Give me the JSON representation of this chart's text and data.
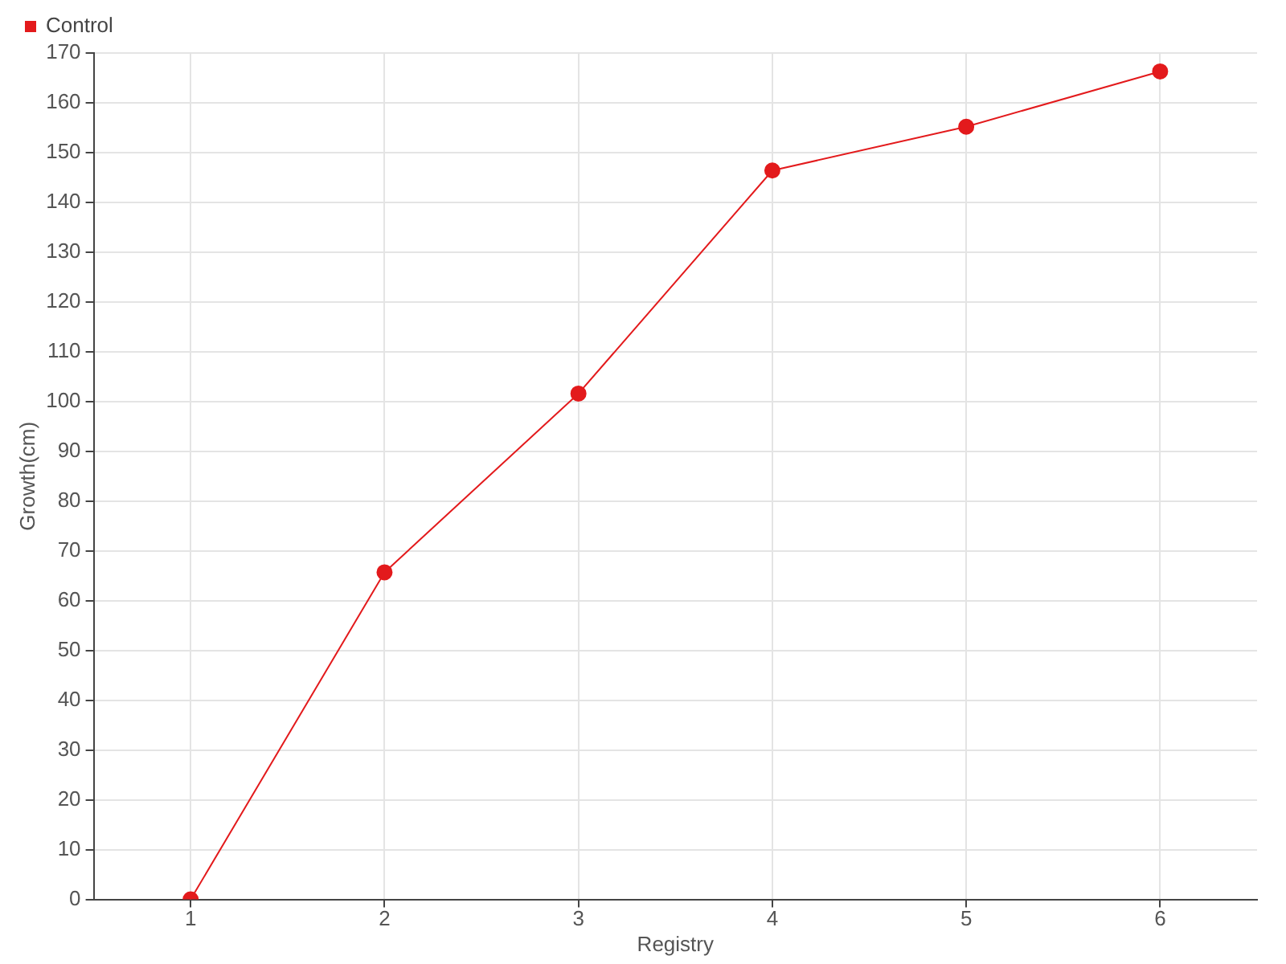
{
  "chart_data": {
    "type": "line",
    "xlabel": "Registry",
    "ylabel": "Growth(cm)",
    "categories": [
      "1",
      "2",
      "3",
      "4",
      "5",
      "6"
    ],
    "series": [
      {
        "name": "Control",
        "color": "#e31a1c",
        "values": [
          0,
          65.7,
          101.6,
          146.4,
          155.2,
          166.3
        ]
      }
    ],
    "ylim": [
      0,
      170
    ],
    "yticks": [
      0,
      10,
      20,
      30,
      40,
      50,
      60,
      70,
      80,
      90,
      100,
      110,
      120,
      130,
      140,
      150,
      160,
      170
    ],
    "grid": true,
    "legend": "top left",
    "marker": "circle",
    "line_style": "solid"
  }
}
